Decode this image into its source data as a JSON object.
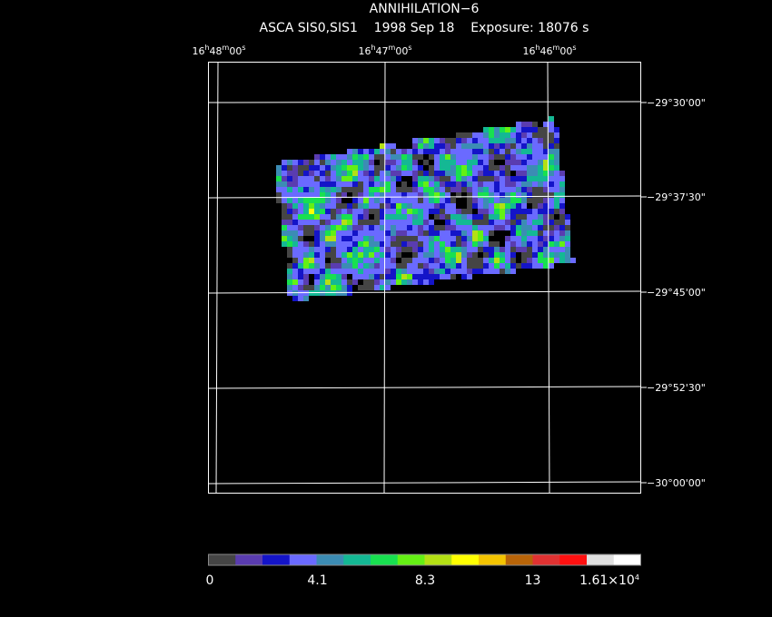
{
  "header": {
    "title": "ANNIHILATION−6",
    "subtitle": "ASCA SIS0,SIS1    1998 Sep 18    Exposure: 18076 s"
  },
  "ra_labels": [
    [
      "16",
      "h",
      "48",
      "m",
      "00",
      "s"
    ],
    [
      "16",
      "h",
      "47",
      "m",
      "00",
      "s"
    ],
    [
      "16",
      "h",
      "46",
      "m",
      "00",
      "s"
    ]
  ],
  "dec_labels": [
    "−29°30'00\"",
    "−29°37'30\"",
    "−29°45'00\"",
    "−29°52'30\"",
    "−30°00'00\""
  ],
  "colorbar": {
    "colors": [
      "#454545",
      "#5a3cb0",
      "#1414c8",
      "#6a6aff",
      "#3c8cb4",
      "#14b894",
      "#18e050",
      "#64f014",
      "#b4e014",
      "#ffff00",
      "#f4c400",
      "#b86408",
      "#e03232",
      "#ff1010",
      "#e0e0e0",
      "#ffffff"
    ],
    "labels": [
      [
        "0"
      ],
      [
        "4.1"
      ],
      [
        "8.3"
      ],
      [
        "13"
      ],
      [
        "1.61×10",
        "4"
      ]
    ]
  }
}
